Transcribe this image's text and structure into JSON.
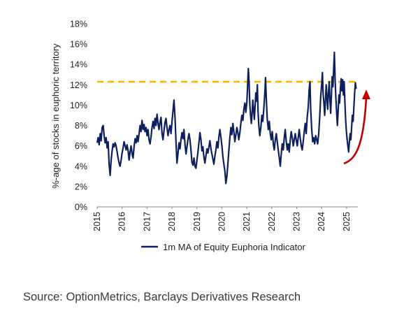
{
  "chart_data": {
    "type": "line",
    "ylabel": "%-age of stocks in euphoric territory",
    "xlabel": "",
    "ylim": [
      0,
      18
    ],
    "y_ticks": [
      "0%",
      "2%",
      "4%",
      "6%",
      "8%",
      "10%",
      "12%",
      "14%",
      "16%",
      "18%"
    ],
    "xlim": [
      2015.0,
      2025.45
    ],
    "x_ticks": [
      "2015",
      "2016",
      "2017",
      "2018",
      "2019",
      "2020",
      "2021",
      "2022",
      "2023",
      "2024",
      "2025"
    ],
    "grid": false,
    "legend_position": "bottom",
    "reference_line": {
      "y": 12.3,
      "style": "dashed",
      "color": "#f5b800"
    },
    "annotation": {
      "type": "curved-arrow",
      "color": "#c00000",
      "direction": "up"
    },
    "series": [
      {
        "name": "1m MA of Equity Euphoria Indicator",
        "color": "#0d1f5c",
        "points": [
          [
            2015.0,
            6.3
          ],
          [
            2015.04,
            6.8
          ],
          [
            2015.08,
            6.1
          ],
          [
            2015.12,
            7.2
          ],
          [
            2015.16,
            6.5
          ],
          [
            2015.2,
            7.8
          ],
          [
            2015.24,
            8.0
          ],
          [
            2015.28,
            7.0
          ],
          [
            2015.32,
            6.3
          ],
          [
            2015.36,
            6.8
          ],
          [
            2015.4,
            5.8
          ],
          [
            2015.44,
            6.4
          ],
          [
            2015.48,
            4.2
          ],
          [
            2015.52,
            3.1
          ],
          [
            2015.56,
            4.6
          ],
          [
            2015.6,
            5.5
          ],
          [
            2015.64,
            6.2
          ],
          [
            2015.68,
            5.9
          ],
          [
            2015.72,
            6.3
          ],
          [
            2015.76,
            6.0
          ],
          [
            2015.8,
            5.4
          ],
          [
            2015.84,
            4.8
          ],
          [
            2015.88,
            4.3
          ],
          [
            2015.92,
            4.0
          ],
          [
            2015.96,
            4.6
          ],
          [
            2016.0,
            5.3
          ],
          [
            2016.04,
            5.8
          ],
          [
            2016.08,
            6.4
          ],
          [
            2016.12,
            6.0
          ],
          [
            2016.16,
            5.6
          ],
          [
            2016.2,
            6.1
          ],
          [
            2016.24,
            5.5
          ],
          [
            2016.28,
            4.6
          ],
          [
            2016.32,
            5.4
          ],
          [
            2016.36,
            6.0
          ],
          [
            2016.4,
            5.2
          ],
          [
            2016.44,
            4.8
          ],
          [
            2016.48,
            5.9
          ],
          [
            2016.52,
            6.7
          ],
          [
            2016.56,
            6.3
          ],
          [
            2016.6,
            7.0
          ],
          [
            2016.64,
            6.4
          ],
          [
            2016.68,
            7.2
          ],
          [
            2016.72,
            8.0
          ],
          [
            2016.76,
            7.4
          ],
          [
            2016.8,
            8.5
          ],
          [
            2016.84,
            7.6
          ],
          [
            2016.88,
            8.1
          ],
          [
            2016.92,
            7.4
          ],
          [
            2016.96,
            7.8
          ],
          [
            2017.0,
            7.0
          ],
          [
            2017.04,
            7.6
          ],
          [
            2017.08,
            6.6
          ],
          [
            2017.12,
            6.2
          ],
          [
            2017.16,
            6.9
          ],
          [
            2017.2,
            7.8
          ],
          [
            2017.24,
            8.4
          ],
          [
            2017.28,
            7.7
          ],
          [
            2017.32,
            8.7
          ],
          [
            2017.36,
            8.0
          ],
          [
            2017.4,
            9.1
          ],
          [
            2017.44,
            8.2
          ],
          [
            2017.48,
            7.6
          ],
          [
            2017.52,
            8.3
          ],
          [
            2017.56,
            8.8
          ],
          [
            2017.6,
            7.2
          ],
          [
            2017.64,
            6.6
          ],
          [
            2017.68,
            7.5
          ],
          [
            2017.72,
            8.3
          ],
          [
            2017.76,
            8.7
          ],
          [
            2017.8,
            7.8
          ],
          [
            2017.84,
            7.0
          ],
          [
            2017.88,
            7.6
          ],
          [
            2017.92,
            8.0
          ],
          [
            2017.96,
            7.2
          ],
          [
            2018.0,
            8.4
          ],
          [
            2018.04,
            9.4
          ],
          [
            2018.08,
            10.5
          ],
          [
            2018.12,
            8.8
          ],
          [
            2018.16,
            6.4
          ],
          [
            2018.2,
            4.3
          ],
          [
            2018.24,
            5.2
          ],
          [
            2018.28,
            6.3
          ],
          [
            2018.32,
            5.7
          ],
          [
            2018.36,
            6.6
          ],
          [
            2018.4,
            7.3
          ],
          [
            2018.44,
            6.7
          ],
          [
            2018.48,
            7.6
          ],
          [
            2018.52,
            6.2
          ],
          [
            2018.56,
            5.2
          ],
          [
            2018.6,
            5.9
          ],
          [
            2018.64,
            6.6
          ],
          [
            2018.68,
            7.2
          ],
          [
            2018.72,
            6.6
          ],
          [
            2018.76,
            5.6
          ],
          [
            2018.8,
            4.4
          ],
          [
            2018.84,
            4.1
          ],
          [
            2018.88,
            4.8
          ],
          [
            2018.92,
            4.0
          ],
          [
            2018.96,
            3.8
          ],
          [
            2019.0,
            4.6
          ],
          [
            2019.04,
            5.4
          ],
          [
            2019.08,
            6.3
          ],
          [
            2019.12,
            7.3
          ],
          [
            2019.16,
            6.6
          ],
          [
            2019.2,
            5.5
          ],
          [
            2019.24,
            5.9
          ],
          [
            2019.28,
            4.9
          ],
          [
            2019.32,
            4.3
          ],
          [
            2019.36,
            5.0
          ],
          [
            2019.4,
            5.7
          ],
          [
            2019.44,
            5.3
          ],
          [
            2019.48,
            5.9
          ],
          [
            2019.52,
            6.5
          ],
          [
            2019.56,
            5.7
          ],
          [
            2019.6,
            5.2
          ],
          [
            2019.64,
            4.7
          ],
          [
            2019.68,
            4.2
          ],
          [
            2019.72,
            5.0
          ],
          [
            2019.76,
            5.6
          ],
          [
            2019.8,
            6.4
          ],
          [
            2019.84,
            5.8
          ],
          [
            2019.88,
            6.9
          ],
          [
            2019.92,
            7.6
          ],
          [
            2019.96,
            6.9
          ],
          [
            2020.0,
            6.0
          ],
          [
            2020.04,
            4.9
          ],
          [
            2020.08,
            4.2
          ],
          [
            2020.12,
            3.5
          ],
          [
            2020.16,
            2.3
          ],
          [
            2020.2,
            3.0
          ],
          [
            2020.24,
            4.2
          ],
          [
            2020.28,
            5.6
          ],
          [
            2020.32,
            6.8
          ],
          [
            2020.36,
            7.8
          ],
          [
            2020.4,
            7.1
          ],
          [
            2020.44,
            8.2
          ],
          [
            2020.48,
            7.4
          ],
          [
            2020.52,
            6.4
          ],
          [
            2020.56,
            7.1
          ],
          [
            2020.6,
            7.8
          ],
          [
            2020.64,
            7.3
          ],
          [
            2020.68,
            6.6
          ],
          [
            2020.72,
            7.3
          ],
          [
            2020.76,
            8.2
          ],
          [
            2020.8,
            9.0
          ],
          [
            2020.84,
            8.5
          ],
          [
            2020.88,
            9.6
          ],
          [
            2020.92,
            10.2
          ],
          [
            2020.96,
            9.3
          ],
          [
            2021.0,
            10.3
          ],
          [
            2021.03,
            11.8
          ],
          [
            2021.06,
            13.6
          ],
          [
            2021.09,
            12.2
          ],
          [
            2021.12,
            10.1
          ],
          [
            2021.15,
            9.0
          ],
          [
            2021.18,
            8.2
          ],
          [
            2021.21,
            9.2
          ],
          [
            2021.24,
            10.5
          ],
          [
            2021.27,
            9.6
          ],
          [
            2021.3,
            8.6
          ],
          [
            2021.33,
            9.8
          ],
          [
            2021.36,
            11.2
          ],
          [
            2021.39,
            10.4
          ],
          [
            2021.42,
            12.0
          ],
          [
            2021.45,
            9.4
          ],
          [
            2021.48,
            8.0
          ],
          [
            2021.52,
            7.0
          ],
          [
            2021.56,
            7.8
          ],
          [
            2021.6,
            9.0
          ],
          [
            2021.64,
            8.4
          ],
          [
            2021.68,
            9.6
          ],
          [
            2021.72,
            11.2
          ],
          [
            2021.75,
            12.7
          ],
          [
            2021.78,
            10.6
          ],
          [
            2021.82,
            8.6
          ],
          [
            2021.86,
            7.6
          ],
          [
            2021.9,
            8.4
          ],
          [
            2021.94,
            7.2
          ],
          [
            2021.98,
            6.6
          ],
          [
            2022.02,
            7.4
          ],
          [
            2022.06,
            6.2
          ],
          [
            2022.1,
            5.6
          ],
          [
            2022.14,
            6.6
          ],
          [
            2022.18,
            7.2
          ],
          [
            2022.22,
            6.4
          ],
          [
            2022.26,
            5.6
          ],
          [
            2022.3,
            4.8
          ],
          [
            2022.34,
            4.0
          ],
          [
            2022.38,
            5.2
          ],
          [
            2022.42,
            6.2
          ],
          [
            2022.46,
            5.6
          ],
          [
            2022.5,
            6.8
          ],
          [
            2022.54,
            7.6
          ],
          [
            2022.58,
            6.4
          ],
          [
            2022.62,
            5.6
          ],
          [
            2022.66,
            6.2
          ],
          [
            2022.7,
            5.4
          ],
          [
            2022.74,
            6.6
          ],
          [
            2022.78,
            7.4
          ],
          [
            2022.82,
            6.8
          ],
          [
            2022.86,
            6.0
          ],
          [
            2022.9,
            6.6
          ],
          [
            2022.94,
            7.2
          ],
          [
            2022.98,
            6.6
          ],
          [
            2023.02,
            6.0
          ],
          [
            2023.06,
            6.8
          ],
          [
            2023.1,
            7.6
          ],
          [
            2023.14,
            6.8
          ],
          [
            2023.18,
            6.0
          ],
          [
            2023.22,
            5.6
          ],
          [
            2023.26,
            6.4
          ],
          [
            2023.3,
            7.4
          ],
          [
            2023.34,
            8.2
          ],
          [
            2023.38,
            7.2
          ],
          [
            2023.42,
            8.8
          ],
          [
            2023.46,
            9.8
          ],
          [
            2023.5,
            11.6
          ],
          [
            2023.53,
            12.3
          ],
          [
            2023.56,
            9.6
          ],
          [
            2023.6,
            7.6
          ],
          [
            2023.64,
            6.4
          ],
          [
            2023.68,
            6.8
          ],
          [
            2023.72,
            6.2
          ],
          [
            2023.76,
            7.0
          ],
          [
            2023.8,
            6.6
          ],
          [
            2023.84,
            6.2
          ],
          [
            2023.88,
            7.2
          ],
          [
            2023.92,
            8.8
          ],
          [
            2023.96,
            10.8
          ],
          [
            2024.0,
            12.0
          ],
          [
            2024.03,
            13.2
          ],
          [
            2024.06,
            11.0
          ],
          [
            2024.09,
            10.2
          ],
          [
            2024.12,
            9.0
          ],
          [
            2024.15,
            10.4
          ],
          [
            2024.18,
            12.0
          ],
          [
            2024.21,
            10.8
          ],
          [
            2024.24,
            9.6
          ],
          [
            2024.27,
            11.2
          ],
          [
            2024.3,
            12.3
          ],
          [
            2024.33,
            10.6
          ],
          [
            2024.36,
            9.2
          ],
          [
            2024.39,
            11.0
          ],
          [
            2024.42,
            12.8
          ],
          [
            2024.45,
            11.8
          ],
          [
            2024.48,
            13.6
          ],
          [
            2024.51,
            15.2
          ],
          [
            2024.54,
            12.4
          ],
          [
            2024.57,
            10.6
          ],
          [
            2024.6,
            9.2
          ],
          [
            2024.63,
            8.0
          ],
          [
            2024.66,
            9.4
          ],
          [
            2024.69,
            11.0
          ],
          [
            2024.72,
            10.2
          ],
          [
            2024.75,
            11.6
          ],
          [
            2024.78,
            12.6
          ],
          [
            2024.81,
            11.4
          ],
          [
            2024.84,
            12.5
          ],
          [
            2024.87,
            11.0
          ],
          [
            2024.9,
            12.3
          ],
          [
            2024.93,
            10.4
          ],
          [
            2024.96,
            8.6
          ],
          [
            2024.99,
            7.4
          ],
          [
            2025.02,
            6.6
          ],
          [
            2025.05,
            6.0
          ],
          [
            2025.08,
            5.4
          ],
          [
            2025.11,
            6.4
          ],
          [
            2025.14,
            7.2
          ],
          [
            2025.17,
            6.6
          ],
          [
            2025.2,
            7.8
          ],
          [
            2025.23,
            9.0
          ],
          [
            2025.26,
            8.4
          ],
          [
            2025.29,
            9.8
          ],
          [
            2025.32,
            11.2
          ],
          [
            2025.35,
            12.2
          ],
          [
            2025.38,
            11.6
          ]
        ]
      }
    ]
  },
  "source": "Source: OptionMetrics, Barclays Derivatives Research"
}
